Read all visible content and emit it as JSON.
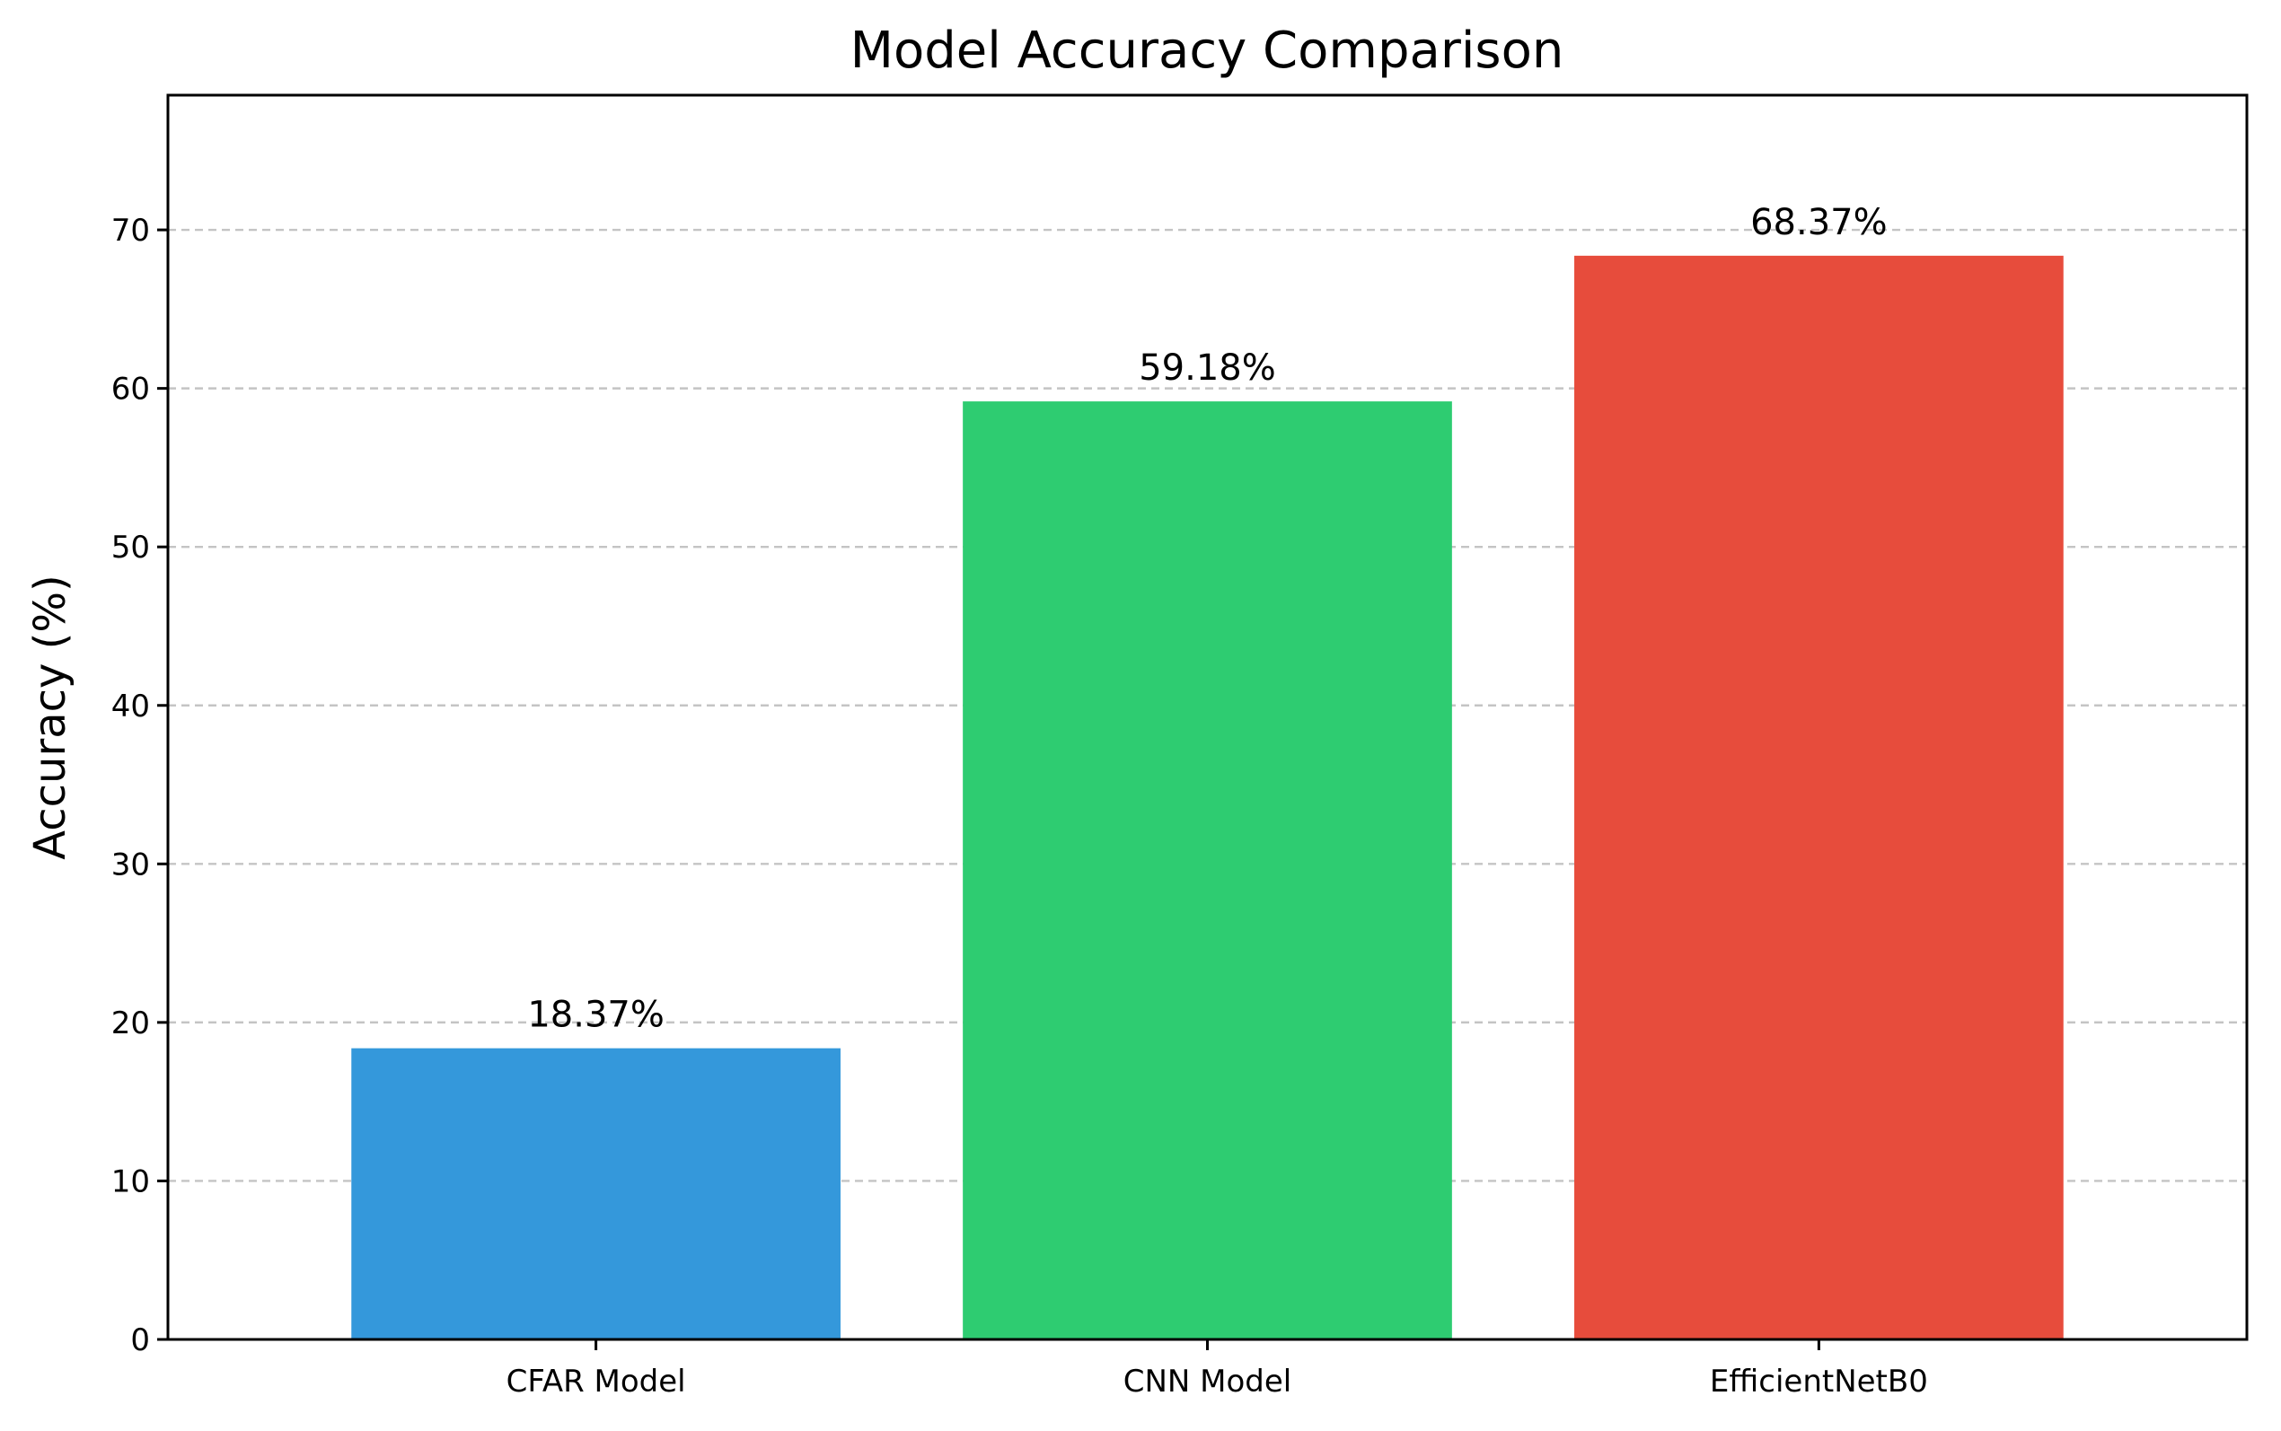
{
  "chart_data": {
    "type": "bar",
    "title": "Model Accuracy Comparison",
    "xlabel": "",
    "ylabel": "Accuracy (%)",
    "categories": [
      "CFAR Model",
      "CNN Model",
      "EfficientNetB0"
    ],
    "values": [
      18.37,
      59.18,
      68.37
    ],
    "data_labels": [
      "18.37%",
      "59.18%",
      "68.37%"
    ],
    "colors": [
      "#3498db",
      "#2ecc71",
      "#e74c3c"
    ],
    "ylim": [
      0,
      78.5
    ],
    "yticks": [
      0,
      10,
      20,
      30,
      40,
      50,
      60,
      70
    ],
    "grid": "y-dashed",
    "legend": "none"
  }
}
